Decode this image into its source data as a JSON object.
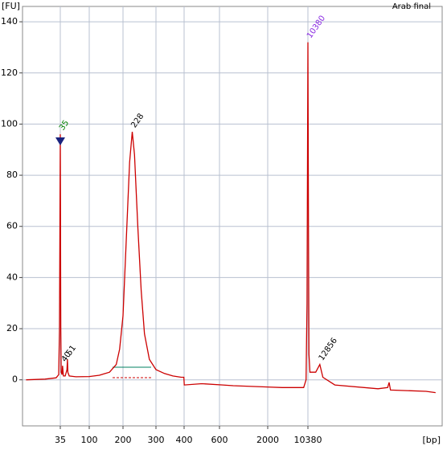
{
  "chart_data": {
    "type": "line",
    "title": "Arab final",
    "y_label": "[FU]",
    "x_label": "[bp]",
    "color": "#cc0000",
    "x": [
      10,
      20,
      30,
      33,
      34,
      35,
      36,
      37,
      39,
      40,
      42,
      46,
      50,
      51,
      52,
      55,
      70,
      100,
      130,
      160,
      180,
      190,
      200,
      210,
      220,
      228,
      235,
      245,
      255,
      265,
      280,
      300,
      330,
      360,
      390,
      399,
      401,
      500,
      700,
      1000,
      2000,
      5000,
      9500,
      10000,
      10200,
      10380,
      10500,
      10600,
      10800,
      12000,
      12856,
      13500,
      16000,
      25000,
      27000,
      27300,
      27600,
      35000,
      37000
    ],
    "values": [
      0,
      0.3,
      0.8,
      2,
      20,
      96,
      20,
      3,
      2,
      5.5,
      1.5,
      1.5,
      4,
      8,
      3,
      1.5,
      1.2,
      1.3,
      1.8,
      3,
      6,
      12,
      25,
      55,
      85,
      97,
      88,
      60,
      35,
      18,
      8,
      4,
      2.5,
      1.5,
      1,
      1,
      -2,
      -1.5,
      -2,
      -2.3,
      -2.8,
      -3,
      -3,
      0,
      30,
      132,
      60,
      10,
      3,
      3,
      6,
      1,
      -2,
      -3.5,
      -3,
      -1,
      -4,
      -4.5,
      -5
    ],
    "peaks": [
      {
        "bp": 35,
        "color": "#008000"
      },
      {
        "bp": 40,
        "color": "#000000"
      },
      {
        "bp": 51,
        "color": "#000000"
      },
      {
        "bp": 228,
        "color": "#000000"
      },
      {
        "bp": 10380,
        "color": "#8a2be2"
      },
      {
        "bp": 12856,
        "color": "#000000"
      }
    ],
    "ylim": [
      -18,
      146
    ],
    "yticks": [
      0,
      20,
      40,
      60,
      80,
      100,
      120,
      140
    ],
    "xticks": [
      35,
      100,
      200,
      300,
      400,
      600,
      2000,
      10380
    ],
    "grid": true
  }
}
